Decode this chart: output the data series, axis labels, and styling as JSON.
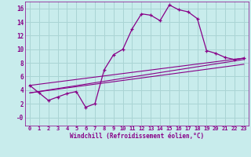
{
  "xlabel": "Windchill (Refroidissement éolien,°C)",
  "bg_color": "#c8ecec",
  "grid_color": "#aad4d4",
  "line_color": "#880088",
  "xlim": [
    -0.5,
    23.5
  ],
  "ylim": [
    -1.2,
    17
  ],
  "yticks": [
    0,
    2,
    4,
    6,
    8,
    10,
    12,
    14,
    16
  ],
  "ytick_labels": [
    "-0",
    "2",
    "4",
    "6",
    "8",
    "10",
    "12",
    "14",
    "16"
  ],
  "xticks": [
    0,
    1,
    2,
    3,
    4,
    5,
    6,
    7,
    8,
    9,
    10,
    11,
    12,
    13,
    14,
    15,
    16,
    17,
    18,
    19,
    20,
    21,
    22,
    23
  ],
  "main_series_x": [
    0,
    1,
    2,
    3,
    4,
    5,
    6,
    7,
    8,
    9,
    10,
    11,
    12,
    13,
    14,
    15,
    16,
    17,
    18,
    19,
    20,
    21,
    22,
    23
  ],
  "main_series_y": [
    4.7,
    3.6,
    2.5,
    3.0,
    3.5,
    3.8,
    1.5,
    2.0,
    7.0,
    9.2,
    10.0,
    13.0,
    15.2,
    15.0,
    14.2,
    16.5,
    15.8,
    15.5,
    14.5,
    9.8,
    9.4,
    8.8,
    8.5,
    8.7
  ],
  "line2_x": [
    0,
    23
  ],
  "line2_y": [
    4.7,
    8.7
  ],
  "line3_x": [
    0,
    23
  ],
  "line3_y": [
    3.6,
    8.5
  ],
  "line4_x": [
    0,
    23
  ],
  "line4_y": [
    3.6,
    7.8
  ]
}
